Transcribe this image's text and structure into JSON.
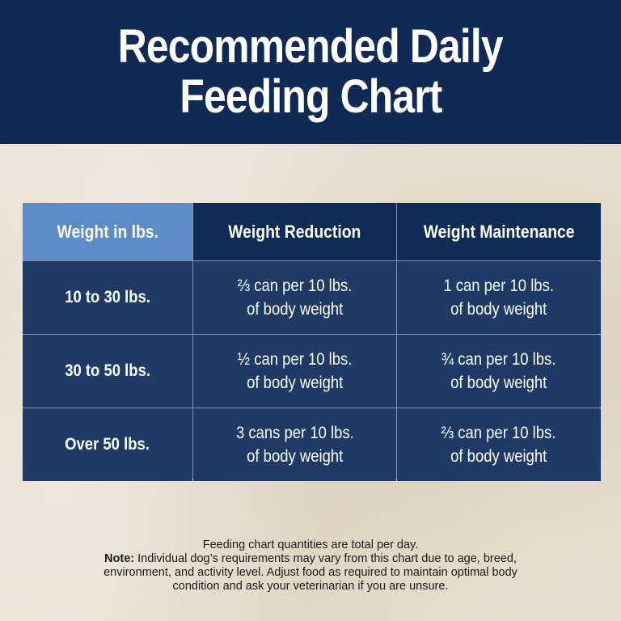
{
  "colors": {
    "header_bg": "#0e2a55",
    "table_header_bg": "#0f2c57",
    "first_header_bg": "#5d8cc8",
    "row_bg": "#1f3a66",
    "grid_line": "#7e95b6",
    "page_bg": "#ece2d4"
  },
  "header": {
    "title_line1": "Recommended Daily",
    "title_line2": "Feeding Chart"
  },
  "table": {
    "columns": [
      "Weight in lbs.",
      "Weight Reduction",
      "Weight Maintenance"
    ],
    "rows": [
      {
        "weight": "10 to 30 lbs.",
        "reduction": [
          "⅔ can per 10 lbs.",
          "of body weight"
        ],
        "maintenance": [
          "1 can per 10 lbs.",
          "of body weight"
        ]
      },
      {
        "weight": "30 to 50 lbs.",
        "reduction": [
          "½ can per 10 lbs.",
          "of body weight"
        ],
        "maintenance": [
          "¾ can per 10 lbs.",
          "of body weight"
        ]
      },
      {
        "weight": "Over 50 lbs.",
        "reduction": [
          "3 cans per 10 lbs.",
          "of body weight"
        ],
        "maintenance": [
          "⅔ can per 10 lbs.",
          "of body weight"
        ]
      }
    ]
  },
  "footnote": {
    "line1": "Feeding chart quantities are total per day.",
    "note_label": "Note:",
    "line2": " Individual dog’s requirements may vary from this chart due to age, breed,",
    "line3": "environment, and activity level. Adjust food as required to maintain optimal body",
    "line4": "condition and ask your veterinarian if you are unsure."
  }
}
